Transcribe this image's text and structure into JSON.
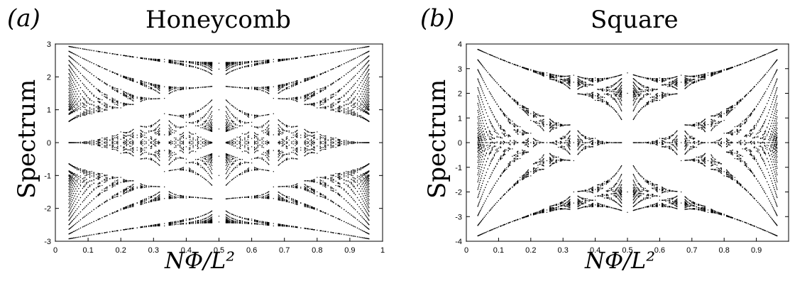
{
  "panels": {
    "a": {
      "label": "(a)",
      "title": "Honeycomb",
      "ylabel": "Spectrum",
      "xlabel": "NΦ/L²"
    },
    "b": {
      "label": "(b)",
      "title": "Square",
      "ylabel": "Spectrum",
      "xlabel": "NΦ/L²"
    }
  },
  "chart_data": [
    {
      "type": "scatter",
      "title": "Honeycomb",
      "xlabel": "NΦ/L²",
      "ylabel": "Spectrum",
      "xlim": [
        0,
        1
      ],
      "ylim": [
        -3,
        3
      ],
      "x_ticks": [
        "0",
        "0.1",
        "0.2",
        "0.3",
        "0.4",
        "0.5",
        "0.6",
        "0.7",
        "0.8",
        "0.9",
        "1"
      ],
      "y_ticks": [
        "-3",
        "-2",
        "-1",
        "0",
        "1",
        "2",
        "3"
      ],
      "grid": false,
      "lattice": "honeycomb",
      "color": "#000000"
    },
    {
      "type": "scatter",
      "title": "Square",
      "xlabel": "NΦ/L²",
      "ylabel": "Spectrum",
      "xlim": [
        0,
        1
      ],
      "ylim": [
        -4,
        4
      ],
      "x_ticks": [
        "0",
        "0.1",
        "0.2",
        "0.3",
        "0.4",
        "0.5",
        "0.6",
        "0.7",
        "0.8",
        "0.9"
      ],
      "y_ticks": [
        "-4",
        "-3",
        "-2",
        "-1",
        "0",
        "1",
        "2",
        "3",
        "4"
      ],
      "grid": false,
      "lattice": "square",
      "color": "#000000"
    }
  ]
}
